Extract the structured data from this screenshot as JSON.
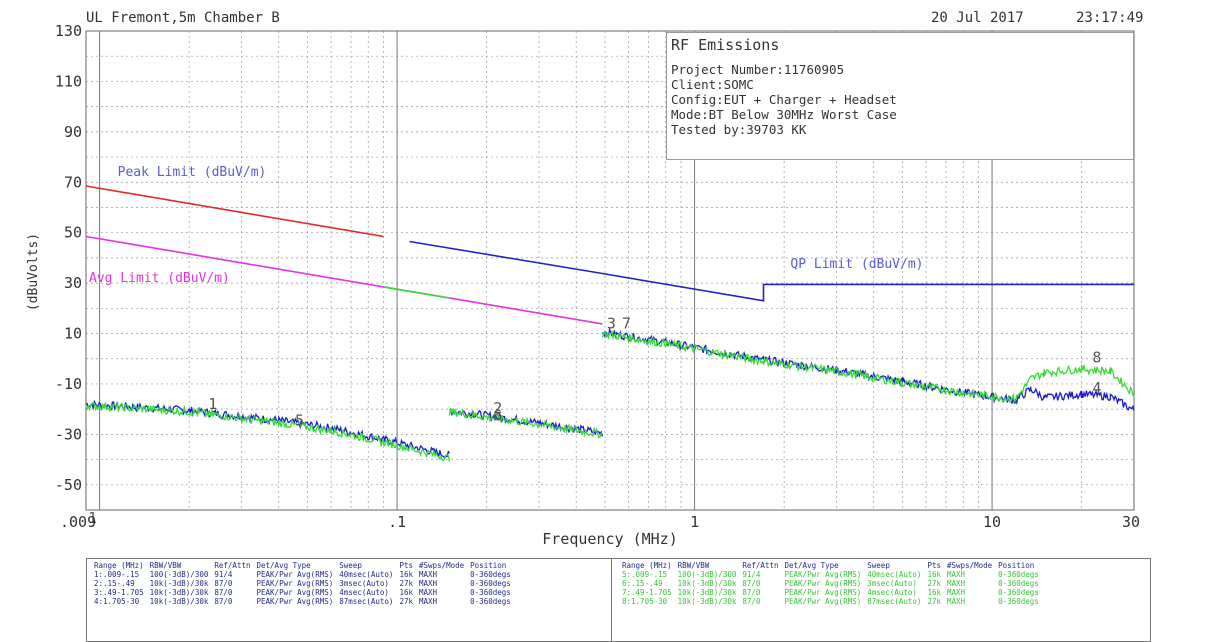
{
  "header": {
    "site": "UL Fremont,5m Chamber B",
    "date": "20 Jul 2017",
    "time": "23:17:49"
  },
  "info_box": {
    "title": "RF Emissions",
    "lines": [
      "Project Number:11760905",
      "Client:SOMC",
      "Config:EUT + Charger + Headset",
      "Mode:BT Below 30MHz Worst Case",
      "Tested by:39703 KK"
    ]
  },
  "legend_table": {
    "headers": [
      "Range (MHz)",
      "RBW/VBW",
      "Ref/Attn",
      "Det/Avg Type",
      "Sweep",
      "Pts",
      "#Swps/Mode",
      "Position"
    ],
    "left_rows": [
      [
        "1:.009-.15",
        "100(-3dB)/300",
        "91/4",
        "PEAK/Pwr Avg(RMS)",
        "40msec(Auto)",
        "16k",
        "MAXH",
        "0-360degs"
      ],
      [
        "2:.15-.49",
        "10k(-3dB)/30k",
        "87/0",
        "PEAK/Pwr Avg(RMS)",
        "3msec(Auto)",
        "27k",
        "MAXH",
        "0-360degs"
      ],
      [
        "3:.49-1.705",
        "10k(-3dB)/30k",
        "87/0",
        "PEAK/Pwr Avg(RMS)",
        "4msec(Auto)",
        "16k",
        "MAXH",
        "0-360degs"
      ],
      [
        "4:1.705-30",
        "10k(-3dB)/30k",
        "87/0",
        "PEAK/Pwr Avg(RMS)",
        "87msec(Auto)",
        "27k",
        "MAXH",
        "0-360degs"
      ]
    ],
    "right_rows": [
      [
        "5:.009-.15",
        "100(-3dB)/300",
        "91/4",
        "PEAK/Pwr Avg(RMS)",
        "40msec(Auto)",
        "16k",
        "MAXH",
        "0-360degs"
      ],
      [
        "6:.15-.49",
        "10k(-3dB)/30k",
        "87/0",
        "PEAK/Pwr Avg(RMS)",
        "3msec(Auto)",
        "27k",
        "MAXH",
        "0-360degs"
      ],
      [
        "7:.49-1.705",
        "10k(-3dB)/30k",
        "87/0",
        "PEAK/Pwr Avg(RMS)",
        "4msec(Auto)",
        "16k",
        "MAXH",
        "0-360degs"
      ],
      [
        "8:1.705-30",
        "10k(-3dB)/30k",
        "87/0",
        "PEAK/Pwr Avg(RMS)",
        "87msec(Auto)",
        "27k",
        "MAXH",
        "0-360degs"
      ]
    ]
  },
  "chart_data": {
    "type": "line",
    "xlabel": "Frequency (MHz)",
    "ylabel": "(dBuVolts)",
    "x_scale": "log",
    "xlim": [
      0.009,
      30
    ],
    "ylim": [
      -60,
      130
    ],
    "y_ticks": [
      130,
      110,
      90,
      70,
      50,
      30,
      10,
      -10,
      -30,
      -50
    ],
    "y_tick_labels": [
      "130",
      "110",
      "90",
      "70",
      "50",
      "30",
      "10",
      "-10",
      "-30",
      "-50"
    ],
    "x_ticks": [
      0.009,
      0.1,
      1,
      10,
      30
    ],
    "x_tick_labels": [
      ".009",
      ".1",
      "1",
      "10",
      "30"
    ],
    "x_origin_overlap_label": "1",
    "grid": true,
    "colors": {
      "peak_limit": "#e02a2a",
      "avg_limit": "#e034e0",
      "qp_limit": "#2323c8",
      "trace_peak": "#1a1ad0",
      "trace_avg": "#33dd33",
      "axis_text": "#333333",
      "grid": "#9a9a9a"
    },
    "limits": [
      {
        "name": "Peak Limit (dBuV/m)",
        "color": "#e02a2a",
        "points": [
          [
            0.009,
            68.5
          ],
          [
            0.09,
            48.5
          ]
        ]
      },
      {
        "name": "Avg Limit (dBuV/m)",
        "color": "#e034e0",
        "points": [
          [
            0.009,
            48.5
          ],
          [
            0.09,
            28.5
          ],
          [
            0.49,
            13.8
          ]
        ]
      },
      {
        "name": "QP Limit (dBuV/m)",
        "color": "#2323c8",
        "points": [
          [
            0.11,
            46.5
          ],
          [
            0.49,
            33.8
          ],
          [
            1.705,
            23.0
          ],
          [
            1.705,
            29.5
          ],
          [
            30,
            29.5
          ]
        ]
      }
    ],
    "avg_limit_green_segment": [
      [
        0.09,
        28.5
      ],
      [
        0.15,
        24.1
      ]
    ],
    "series": [
      {
        "name": "",
        "color": "#1a1ad0",
        "segments": [
          [
            [
              0.009,
              -18.0
            ],
            [
              0.02,
              -20.5
            ],
            [
              0.04,
              -24.5
            ],
            [
              0.06,
              -27.5
            ],
            [
              0.09,
              -32.0
            ],
            [
              0.15,
              -38.5
            ]
          ],
          [
            [
              0.15,
              -20.5
            ],
            [
              0.3,
              -25.5
            ],
            [
              0.49,
              -29.5
            ]
          ],
          [
            [
              0.49,
              10.5
            ],
            [
              0.8,
              6.5
            ],
            [
              1.705,
              -0.5
            ],
            [
              3,
              -4.5
            ],
            [
              5,
              -9.0
            ],
            [
              8,
              -13.5
            ],
            [
              12,
              -16.5
            ],
            [
              13.5,
              -12.0
            ],
            [
              15,
              -15.5
            ],
            [
              20,
              -14.0
            ],
            [
              25,
              -15.0
            ],
            [
              30,
              -20.5
            ]
          ]
        ]
      },
      {
        "name": "",
        "color": "#33dd33",
        "segments": [
          [
            [
              0.009,
              -18.5
            ],
            [
              0.02,
              -21.0
            ],
            [
              0.04,
              -25.5
            ],
            [
              0.06,
              -28.5
            ],
            [
              0.09,
              -33.0
            ],
            [
              0.15,
              -39.5
            ]
          ],
          [
            [
              0.15,
              -21.0
            ],
            [
              0.3,
              -26.0
            ],
            [
              0.49,
              -30.0
            ]
          ],
          [
            [
              0.49,
              10.0
            ],
            [
              0.8,
              6.0
            ],
            [
              1.705,
              -1.0
            ],
            [
              3,
              -5.0
            ],
            [
              5,
              -9.5
            ],
            [
              8,
              -13.5
            ],
            [
              12,
              -16.0
            ],
            [
              13.5,
              -8.0
            ],
            [
              15,
              -5.5
            ],
            [
              20,
              -4.0
            ],
            [
              25,
              -5.0
            ],
            [
              30,
              -14.0
            ]
          ]
        ]
      }
    ],
    "markers": [
      {
        "label": "1",
        "x": 0.024,
        "y": -20.0
      },
      {
        "label": "5",
        "x": 0.047,
        "y": -26.5
      },
      {
        "label": "2",
        "x": 0.218,
        "y": -21.5
      },
      {
        "label": "6",
        "x": 0.218,
        "y": -24.5
      },
      {
        "label": "3",
        "x": 0.525,
        "y": 12.0
      },
      {
        "label": "7",
        "x": 0.59,
        "y": 12.0
      },
      {
        "label": "8",
        "x": 22.5,
        "y": -1.5
      },
      {
        "label": "4",
        "x": 22.5,
        "y": -13.5
      }
    ]
  }
}
